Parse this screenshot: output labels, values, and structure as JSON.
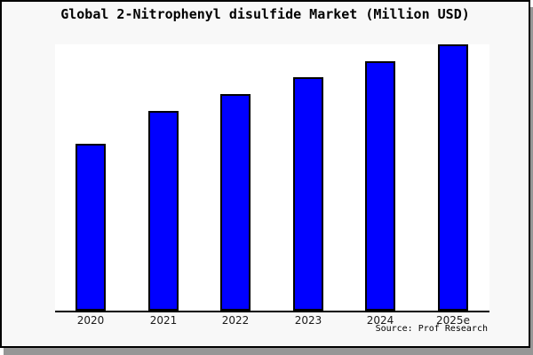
{
  "window": {
    "background": "#f8f8f8",
    "border_color": "#000000",
    "shadow_color": "#969696"
  },
  "chart_data": {
    "type": "bar",
    "title": "Global 2-Nitrophenyl disulfide Market (Million USD)",
    "categories": [
      "2020",
      "2021",
      "2022",
      "2023",
      "2024",
      "2025e"
    ],
    "values": [
      62.7,
      75.0,
      81.3,
      87.7,
      93.7,
      100.0
    ],
    "values_note": "y-axis has no tick labels; values estimated as percent of tallest bar (2025e = 100)",
    "xlabel": "",
    "ylabel": "",
    "ylim": [
      0,
      100
    ],
    "grid": false,
    "legend": null,
    "bar_color": "#0000ff",
    "bar_border_color": "#000000",
    "axis_color": "#000000",
    "plot_background": "#ffffff"
  },
  "source": {
    "label": "Source: Prof Research"
  }
}
